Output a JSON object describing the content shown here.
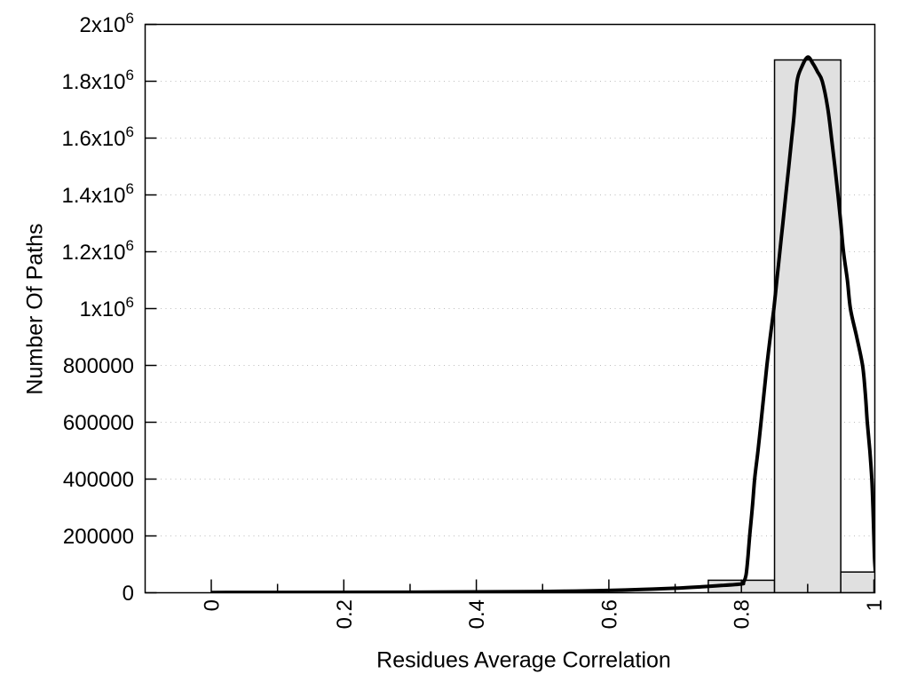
{
  "chart_data": {
    "type": "histogram",
    "title": "",
    "xlabel": "Residues Average Correlation",
    "ylabel": "Number Of Paths",
    "xlim": [
      -0.1,
      1.0013
    ],
    "ylim": [
      0,
      2000000
    ],
    "grid": "horizontal-dotted",
    "legend": "none",
    "x_ticks": [
      {
        "value": 0.0,
        "label": "0"
      },
      {
        "value": 0.2,
        "label": "0.2"
      },
      {
        "value": 0.4,
        "label": "0.4"
      },
      {
        "value": 0.6,
        "label": "0.6"
      },
      {
        "value": 0.8,
        "label": "0.8"
      },
      {
        "value": 1.0,
        "label": "1"
      }
    ],
    "x_minor_ticks": [
      0.1,
      0.3,
      0.5,
      0.7,
      0.9
    ],
    "y_ticks": [
      {
        "value": 0,
        "base": "0",
        "exp": ""
      },
      {
        "value": 200000,
        "base": "200000",
        "exp": ""
      },
      {
        "value": 400000,
        "base": "400000",
        "exp": ""
      },
      {
        "value": 600000,
        "base": "600000",
        "exp": ""
      },
      {
        "value": 800000,
        "base": "800000",
        "exp": ""
      },
      {
        "value": 1000000,
        "base": "1x10",
        "exp": "6"
      },
      {
        "value": 1200000,
        "base": "1.2x10",
        "exp": "6"
      },
      {
        "value": 1400000,
        "base": "1.4x10",
        "exp": "6"
      },
      {
        "value": 1600000,
        "base": "1.6x10",
        "exp": "6"
      },
      {
        "value": 1800000,
        "base": "1.8x10",
        "exp": "6"
      },
      {
        "value": 2000000,
        "base": "2x10",
        "exp": "6"
      }
    ],
    "bars": [
      {
        "x0": 0.75,
        "x1": 0.85,
        "value": 44000
      },
      {
        "x0": 0.85,
        "x1": 0.95,
        "value": 1875000
      },
      {
        "x0": 0.95,
        "x1": 1.05,
        "value": 73000
      }
    ],
    "curve_points": [
      [
        0.0,
        1000
      ],
      [
        0.1,
        1200
      ],
      [
        0.2,
        1500
      ],
      [
        0.3,
        2000
      ],
      [
        0.4,
        3000
      ],
      [
        0.5,
        4500
      ],
      [
        0.55,
        6000
      ],
      [
        0.6,
        8000
      ],
      [
        0.65,
        11500
      ],
      [
        0.7,
        16000
      ],
      [
        0.74,
        21000
      ],
      [
        0.77,
        25500
      ],
      [
        0.8,
        31000
      ],
      [
        0.803,
        36000
      ],
      [
        0.807,
        62000
      ],
      [
        0.81,
        130000
      ],
      [
        0.8125,
        200000
      ],
      [
        0.8165,
        300000
      ],
      [
        0.82,
        400000
      ],
      [
        0.825,
        500000
      ],
      [
        0.8296,
        600000
      ],
      [
        0.834,
        700000
      ],
      [
        0.8385,
        800000
      ],
      [
        0.8435,
        900000
      ],
      [
        0.849,
        1000000
      ],
      [
        0.8535,
        1100000
      ],
      [
        0.858,
        1200000
      ],
      [
        0.8625,
        1300000
      ],
      [
        0.867,
        1400000
      ],
      [
        0.8715,
        1500000
      ],
      [
        0.876,
        1600000
      ],
      [
        0.8795,
        1680000
      ],
      [
        0.884,
        1800000
      ],
      [
        0.891,
        1850000
      ],
      [
        0.9,
        1885000
      ],
      [
        0.908,
        1862000
      ],
      [
        0.915,
        1833000
      ],
      [
        0.922,
        1800000
      ],
      [
        0.93,
        1710000
      ],
      [
        0.936,
        1600000
      ],
      [
        0.941,
        1500000
      ],
      [
        0.9457,
        1400000
      ],
      [
        0.95,
        1300000
      ],
      [
        0.954,
        1200000
      ],
      [
        0.96,
        1100000
      ],
      [
        0.9645,
        1000000
      ],
      [
        0.974,
        900000
      ],
      [
        0.9828,
        800000
      ],
      [
        0.987,
        700000
      ],
      [
        0.99,
        600000
      ],
      [
        0.9938,
        500000
      ],
      [
        0.9968,
        400000
      ],
      [
        0.9985,
        300000
      ],
      [
        0.9998,
        200000
      ],
      [
        1.001,
        120000
      ],
      [
        1.0022,
        75000
      ]
    ],
    "colors": {
      "background": "#ffffff",
      "bar_fill": "#e0e0e0",
      "bar_stroke": "#000000",
      "curve": "#000000",
      "grid": "#bdbdbd",
      "axis": "#000000",
      "text": "#000000"
    }
  }
}
